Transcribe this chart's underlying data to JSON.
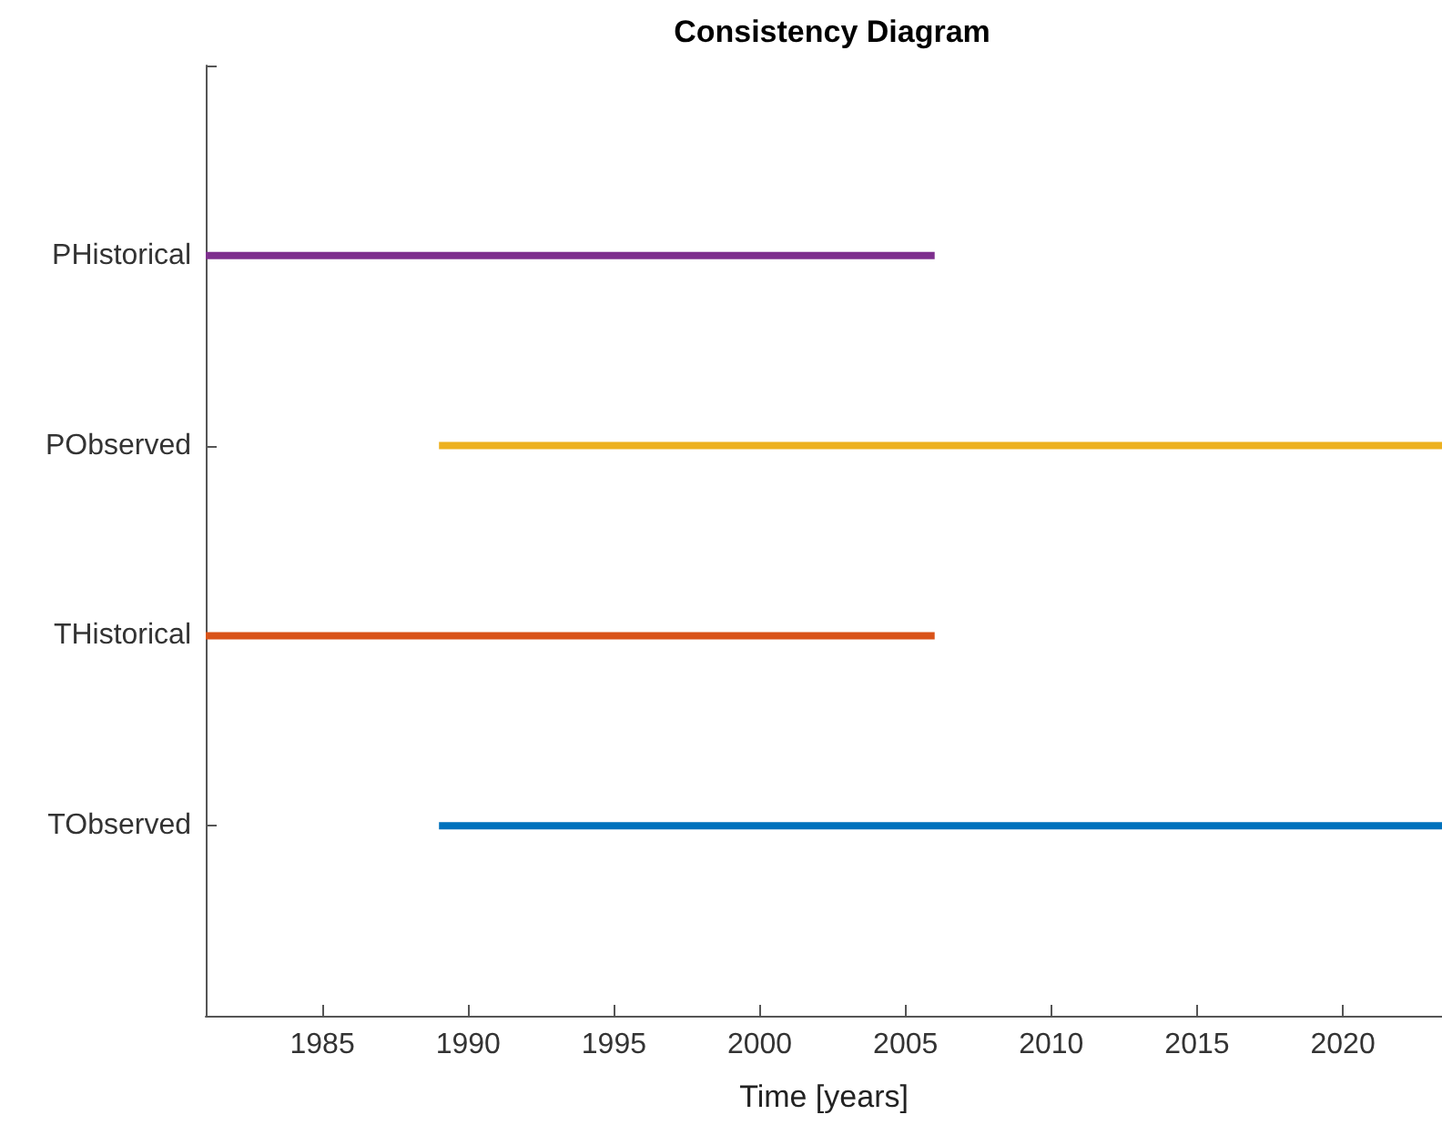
{
  "chart_data": {
    "type": "bar",
    "orientation": "horizontal",
    "title": "Consistency Diagram",
    "xlabel": "Time [years]",
    "categories": [
      "PHistorical",
      "PObserved",
      "THistorical",
      "TObserved"
    ],
    "base": [
      1981,
      1989,
      1981,
      1989
    ],
    "values": [
      25,
      34.4,
      25,
      34.4
    ],
    "colors": [
      "#7e2f8e",
      "#edb120",
      "#d95319",
      "#0072bd"
    ],
    "xlim": [
      1981,
      2023.4
    ],
    "xticks": [
      1985,
      1990,
      1995,
      2000,
      2005,
      2010,
      2015,
      2020
    ],
    "grid": false
  }
}
